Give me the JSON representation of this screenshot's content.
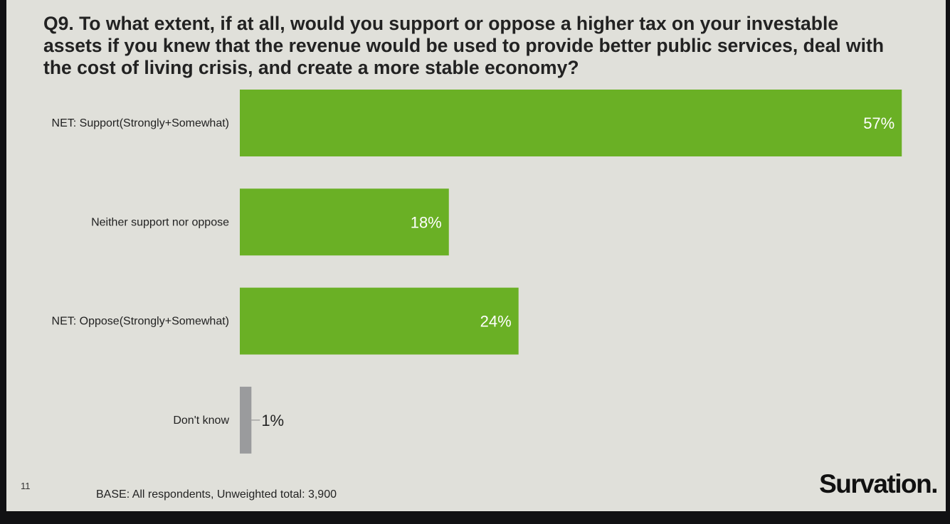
{
  "title": "Q9. To what extent, if at all, would you support or oppose a higher tax on your investable assets if you knew that the revenue would be used to provide better public services, deal with the cost of living crisis, and create a more stable economy?",
  "footer": {
    "page_number": "11",
    "base_note": "BASE: All respondents, Unweighted total: 3,900",
    "logo": "Survation."
  },
  "chart_data": {
    "type": "bar",
    "orientation": "horizontal",
    "title": "Q9. To what extent, if at all, would you support or oppose a higher tax on your investable assets if you knew that the revenue would be used to provide better public services, deal with the cost of living crisis, and create a more stable economy?",
    "categories": [
      "NET: Support(Strongly+Somewhat)",
      "Neither support nor oppose",
      "NET: Oppose(Strongly+Somewhat)",
      "Don't know"
    ],
    "values": [
      57,
      18,
      24,
      1
    ],
    "data_labels": [
      "57%",
      "18%",
      "24%",
      "1%"
    ],
    "bar_colors": [
      "#6ab025",
      "#6ab025",
      "#6ab025",
      "#9a9b9d"
    ],
    "xlim": [
      0,
      60
    ],
    "unit": "%",
    "grid": false,
    "legend": "none"
  }
}
